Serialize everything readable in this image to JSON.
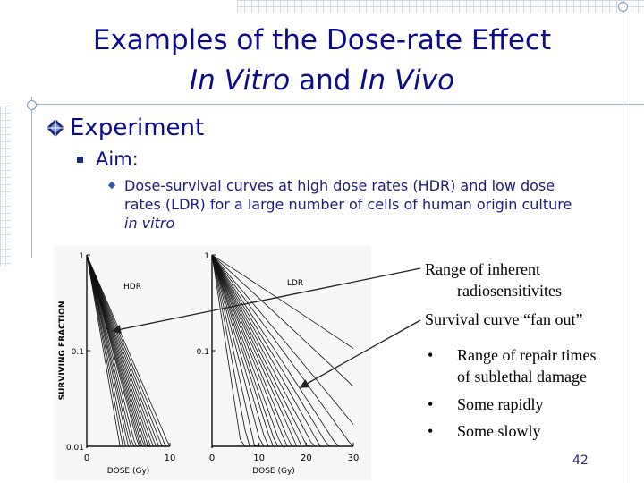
{
  "slide": {
    "title_line1": "Examples of the Dose-rate Effect",
    "title_line2_a": "In Vitro",
    "title_line2_b": " and ",
    "title_line2_c": "In Vivo",
    "heading": "Experiment",
    "aim_label": "Aim:",
    "aim_text_a": "Dose-survival curves at high dose rates (HDR) and low dose rates (LDR) for a large number of cells of human origin culture ",
    "aim_text_b": "in vitro",
    "page_number": "42"
  },
  "annotations": {
    "range_line1": "Range of inherent",
    "range_line2": "radiosensitivites",
    "fan_out": "Survival curve “fan out”",
    "bullets": [
      {
        "marker": "•",
        "line1": "Range of repair times",
        "line2": "of sublethal damage"
      },
      {
        "marker": "•",
        "line1": "Some rapidly",
        "line2": ""
      },
      {
        "marker": "•",
        "line1": "Some slowly",
        "line2": ""
      }
    ]
  },
  "chart_data": [
    {
      "type": "line",
      "panel_label": "HDR",
      "ylabel": "SURVIVING FRACTION",
      "xlabel": "DOSE (Gy)",
      "y_scale": "log",
      "ylim": [
        0.01,
        1
      ],
      "xlim": [
        0,
        10
      ],
      "x_ticks": [
        "0",
        "10"
      ],
      "y_ticks": [
        "1",
        "0.1",
        "0.01"
      ],
      "curves_slope_per_gy": [
        0.5,
        0.46,
        0.43,
        0.4,
        0.38,
        0.36,
        0.34,
        0.32,
        0.31,
        0.3,
        0.29,
        0.28,
        0.27,
        0.26,
        0.25,
        0.24,
        0.23,
        0.22,
        0.21,
        0.2
      ]
    },
    {
      "type": "line",
      "panel_label": "LDR",
      "xlabel": "DOSE (Gy)",
      "y_scale": "log",
      "ylim": [
        0.01,
        1
      ],
      "xlim": [
        0,
        30
      ],
      "x_ticks": [
        "0",
        "10",
        "20",
        "30"
      ],
      "y_ticks": [
        "1",
        "0.1"
      ],
      "curves_slope_per_gy": [
        0.32,
        0.26,
        0.22,
        0.19,
        0.17,
        0.155,
        0.145,
        0.135,
        0.125,
        0.118,
        0.11,
        0.104,
        0.098,
        0.092,
        0.086,
        0.08,
        0.074,
        0.066,
        0.058,
        0.045,
        0.032
      ]
    }
  ],
  "colors": {
    "title": "#0b0b8c",
    "decor_lines": "#9fb3d6",
    "text": "#000000"
  }
}
